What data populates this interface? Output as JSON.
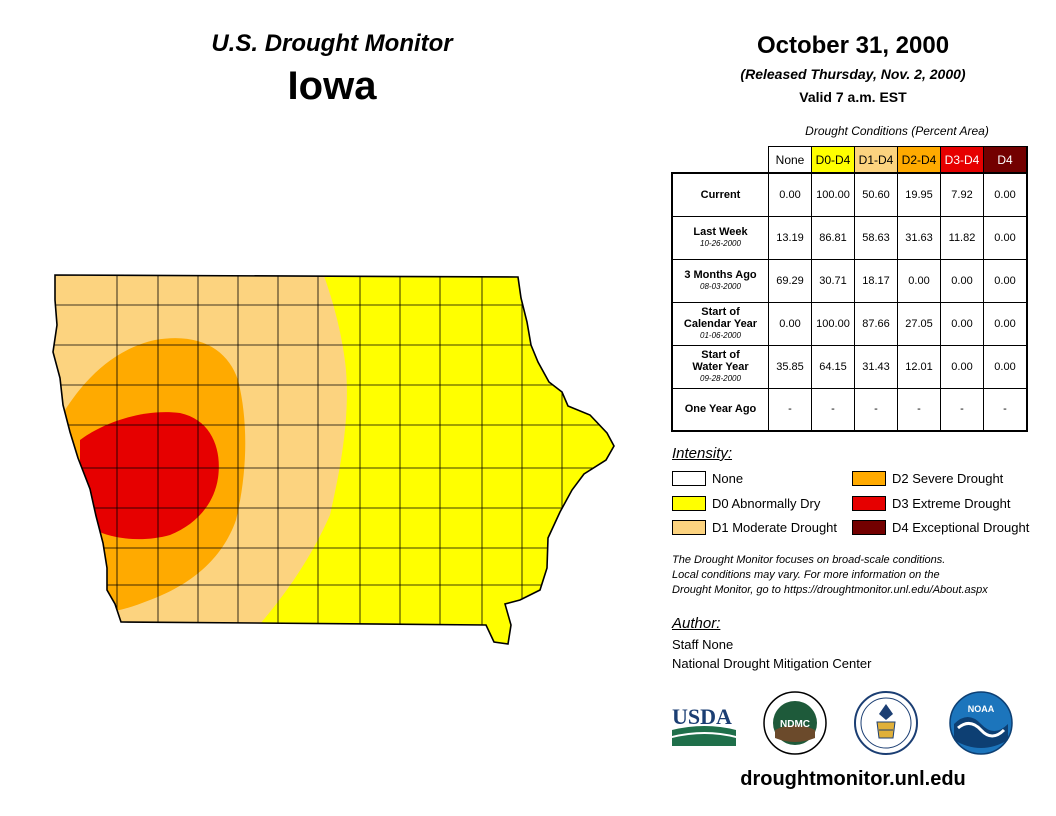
{
  "header": {
    "supertitle": "U.S. Drought Monitor",
    "state": "Iowa",
    "date": "October 31, 2000",
    "released": "(Released Thursday, Nov. 2, 2000)",
    "valid": "Valid 7 a.m. EST"
  },
  "conditions": {
    "caption": "Drought Conditions (Percent Area)",
    "columns": [
      {
        "label": "None",
        "color": "#ffffff",
        "text_color": "#000000"
      },
      {
        "label": "D0-D4",
        "color": "#ffff00",
        "text_color": "#000000"
      },
      {
        "label": "D1-D4",
        "color": "#fcd37f",
        "text_color": "#000000"
      },
      {
        "label": "D2-D4",
        "color": "#ffaa00",
        "text_color": "#000000"
      },
      {
        "label": "D3-D4",
        "color": "#e60000",
        "text_color": "#ffffff"
      },
      {
        "label": "D4",
        "color": "#730000",
        "text_color": "#ffffff"
      }
    ],
    "rows": [
      {
        "label": "Current",
        "label2": "",
        "sub": "",
        "values": [
          "0.00",
          "100.00",
          "50.60",
          "19.95",
          "7.92",
          "0.00"
        ]
      },
      {
        "label": "Last Week",
        "label2": "",
        "sub": "10-26-2000",
        "values": [
          "13.19",
          "86.81",
          "58.63",
          "31.63",
          "11.82",
          "0.00"
        ]
      },
      {
        "label": "3 Months Ago",
        "label2": "",
        "sub": "08-03-2000",
        "values": [
          "69.29",
          "30.71",
          "18.17",
          "0.00",
          "0.00",
          "0.00"
        ]
      },
      {
        "label": "Start of",
        "label2": "Calendar Year",
        "sub": "01-06-2000",
        "values": [
          "0.00",
          "100.00",
          "87.66",
          "27.05",
          "0.00",
          "0.00"
        ]
      },
      {
        "label": "Start of",
        "label2": "Water Year",
        "sub": "09-28-2000",
        "values": [
          "35.85",
          "64.15",
          "31.43",
          "12.01",
          "0.00",
          "0.00"
        ]
      },
      {
        "label": "One Year Ago",
        "label2": "",
        "sub": "",
        "values": [
          "-",
          "-",
          "-",
          "-",
          "-",
          "-"
        ]
      }
    ]
  },
  "intensity": {
    "title": "Intensity:",
    "items": [
      {
        "label": "None",
        "color": "#ffffff"
      },
      {
        "label": "D0 Abnormally Dry",
        "color": "#ffff00"
      },
      {
        "label": "D1 Moderate Drought",
        "color": "#fcd37f"
      },
      {
        "label": "D2 Severe Drought",
        "color": "#ffaa00"
      },
      {
        "label": "D3 Extreme Drought",
        "color": "#e60000"
      },
      {
        "label": "D4 Exceptional Drought",
        "color": "#730000"
      }
    ]
  },
  "note": {
    "line1": "The Drought Monitor focuses on broad-scale conditions.",
    "line2": "Local conditions may vary. For more information on the",
    "line3": "Drought Monitor, go to https://droughtmonitor.unl.edu/About.aspx"
  },
  "author": {
    "title": "Author:",
    "name": "Staff None",
    "org": "National Drought Mitigation Center"
  },
  "logos": {
    "usda": "USDA",
    "ndmc": "NDMC",
    "noaa": "NOAA"
  },
  "footer": {
    "url": "droughtmonitor.unl.edu"
  },
  "map_colors": {
    "d0": "#ffff00",
    "d1": "#fcd37f",
    "d2": "#ffaa00",
    "d3": "#e60000"
  }
}
